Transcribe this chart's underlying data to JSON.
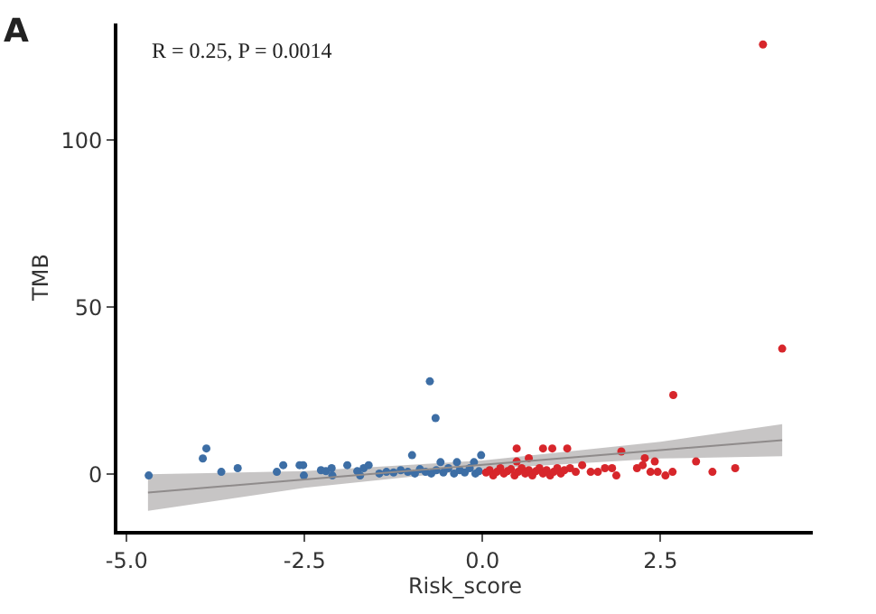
{
  "chart_data": {
    "type": "scatter",
    "xlabel": "Risk_score",
    "ylabel": "TMB",
    "annotations": [
      "A",
      "R = 0.25, P = 0.0014"
    ],
    "xlim": [
      -5.13,
      4.64
    ],
    "ylim": [
      -17,
      135
    ],
    "xticks": [
      {
        "value": -5,
        "label": "-5.0"
      },
      {
        "value": -2.5,
        "label": "-2.5"
      },
      {
        "value": 0,
        "label": "0.0"
      },
      {
        "value": 2.5,
        "label": "2.5"
      }
    ],
    "yticks": [
      0,
      50,
      100
    ],
    "marker": "circle",
    "series": [
      {
        "type": "line",
        "marker": "none",
        "color": "#8f8b8b",
        "x": [
          -4.7,
          -2.5,
          0,
          2.5,
          4.21
        ],
        "values": [
          -5.5,
          -1.6,
          2.8,
          7.2,
          10.2
        ],
        "lower": [
          -11,
          -4.1,
          1.5,
          4.7,
          5.4
        ],
        "upper": [
          0,
          0.9,
          4.1,
          9.7,
          15
        ]
      },
      {
        "color": "#3d6ea5",
        "x": [
          -4.69,
          -3.93,
          -3.88,
          -3.67,
          -3.44,
          -2.89,
          -2.8,
          -2.57,
          -2.52,
          -2.51,
          -2.27,
          -2.2,
          -2.12,
          -2.11,
          -1.9,
          -1.76,
          -1.72,
          -1.67,
          -1.6,
          -1.45,
          -1.35,
          -1.25,
          -1.15,
          -1.05,
          -0.99,
          -0.95,
          -0.88,
          -0.8,
          -0.74,
          -0.72,
          -0.66,
          -0.65,
          -0.59,
          -0.55,
          -0.48,
          -0.4,
          -0.36,
          -0.32,
          -0.25,
          -0.18,
          -0.12,
          -0.1,
          -0.05,
          -0.02
        ],
        "values": [
          -0.4,
          4.7,
          7.7,
          0.7,
          1.8,
          0.7,
          2.7,
          2.7,
          2.7,
          -0.4,
          1.2,
          0.9,
          1.8,
          -0.4,
          2.7,
          0.9,
          -0.4,
          1.8,
          2.7,
          0.2,
          0.7,
          0.5,
          1.2,
          0.7,
          5.7,
          0.2,
          1.5,
          0.7,
          27.8,
          0.2,
          16.8,
          1.2,
          3.6,
          0.5,
          1.8,
          0.2,
          3.6,
          1.2,
          0.5,
          1.8,
          3.6,
          0.2,
          0.9,
          5.7
        ]
      },
      {
        "color": "#d7262b",
        "x": [
          0.05,
          0.1,
          0.15,
          0.2,
          0.25,
          0.3,
          0.35,
          0.4,
          0.45,
          0.48,
          0.48,
          0.5,
          0.55,
          0.6,
          0.65,
          0.65,
          0.7,
          0.75,
          0.8,
          0.85,
          0.85,
          0.9,
          0.95,
          0.98,
          1.0,
          1.05,
          1.1,
          1.15,
          1.19,
          1.23,
          1.31,
          1.4,
          1.52,
          1.62,
          1.72,
          1.82,
          1.88,
          1.95,
          2.17,
          2.25,
          2.28,
          2.36,
          2.42,
          2.46,
          2.57,
          2.67,
          2.68,
          3.0,
          3.23,
          3.55,
          3.94,
          4.21
        ],
        "values": [
          0.5,
          1.2,
          -0.4,
          0.7,
          1.8,
          0.2,
          0.9,
          1.5,
          -0.4,
          7.7,
          3.8,
          0.7,
          1.8,
          0.2,
          4.8,
          1.2,
          -0.4,
          0.9,
          1.8,
          7.7,
          0.2,
          1.2,
          -0.4,
          7.7,
          0.7,
          1.8,
          0.2,
          1.2,
          7.7,
          1.8,
          0.7,
          2.7,
          0.7,
          0.7,
          1.8,
          1.8,
          -0.4,
          6.8,
          1.8,
          2.7,
          4.8,
          0.7,
          3.8,
          0.7,
          -0.4,
          0.7,
          23.7,
          3.8,
          0.7,
          1.8,
          128.7,
          37.6
        ]
      }
    ]
  }
}
